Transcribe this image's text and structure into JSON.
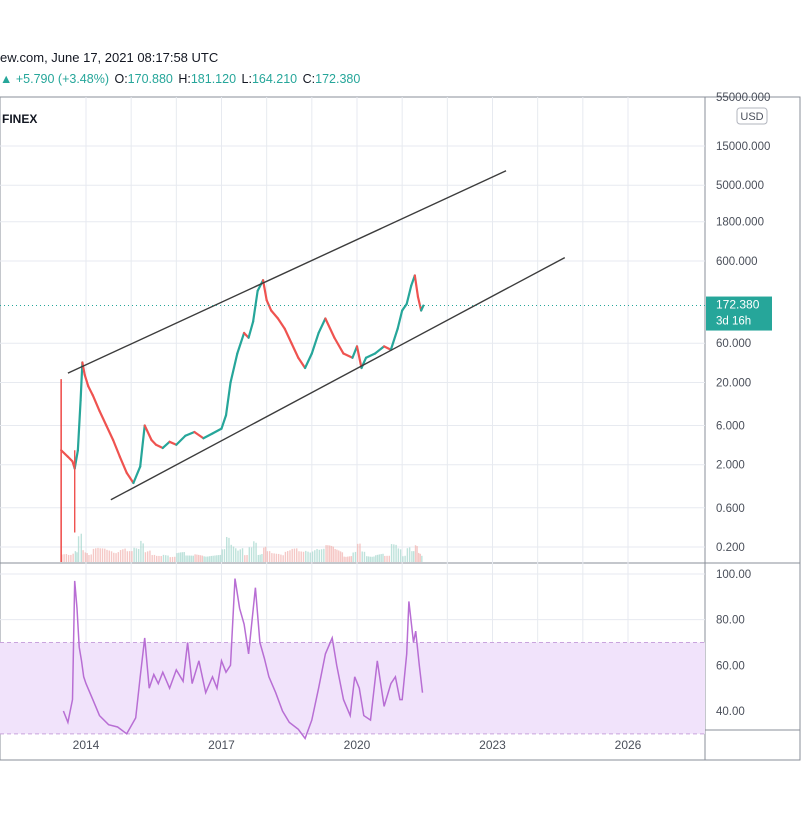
{
  "header": {
    "line1": "ew.com, June 17, 2021 08:17:58 UTC",
    "change_icon": "▲",
    "change": "+5.790 (+3.48%)",
    "ohlc": [
      {
        "label": "O:",
        "value": "170.880"
      },
      {
        "label": "H:",
        "value": "181.120"
      },
      {
        "label": "L:",
        "value": "164.210"
      },
      {
        "label": "C:",
        "value": "172.380"
      }
    ],
    "exchange": "FINEX"
  },
  "colors": {
    "up": "#26a69a",
    "down": "#ef5350",
    "rsi": "#b86ed4",
    "rsi_band": "#f1e3fb",
    "grid": "#e7eaf0",
    "channel": "#3c3c3c"
  },
  "chart_data": [
    {
      "type": "line",
      "title": "",
      "xlabel": "",
      "ylabel": "",
      "scale": "log",
      "currency_label": "USD",
      "x_ticks": [
        "2014",
        "2017",
        "2020",
        "2023",
        "2026"
      ],
      "y_ticks": [
        "55000.000",
        "15000.000",
        "5000.000",
        "1800.000",
        "600.000",
        "60.000",
        "20.000",
        "6.000",
        "2.000",
        "0.600",
        "0.200"
      ],
      "ylim": [
        0.17,
        55000
      ],
      "last_price": {
        "value": "172.380",
        "countdown": "3d 16h"
      },
      "series": [
        {
          "values_x": [
            2013.45,
            2013.6,
            2013.7,
            2013.75,
            2013.82,
            2013.88,
            2013.92,
            2013.97,
            2014.05,
            2014.15,
            2014.3,
            2014.45,
            2014.6,
            2014.75,
            2014.9,
            2015.05,
            2015.2,
            2015.3,
            2015.45,
            2015.55,
            2015.7,
            2015.85,
            2016.0,
            2016.2,
            2016.4,
            2016.6,
            2016.8,
            2017.0,
            2017.1,
            2017.2,
            2017.35,
            2017.5,
            2017.6,
            2017.7,
            2017.8,
            2017.92,
            2018.0,
            2018.1,
            2018.25,
            2018.4,
            2018.55,
            2018.7,
            2018.85,
            2019.0,
            2019.15,
            2019.3,
            2019.5,
            2019.7,
            2019.9,
            2020.0,
            2020.1,
            2020.2,
            2020.4,
            2020.6,
            2020.75,
            2020.9,
            2021.0,
            2021.1,
            2021.2,
            2021.28,
            2021.35,
            2021.42,
            2021.47
          ],
          "values_y": [
            3,
            2.5,
            2.2,
            1.8,
            3,
            12,
            35,
            25,
            18,
            14,
            9,
            6,
            4,
            2.5,
            1.6,
            1.2,
            1.9,
            6,
            4,
            3.5,
            3.2,
            3.8,
            3.5,
            4.5,
            5,
            4.2,
            4.8,
            5.5,
            8,
            20,
            45,
            80,
            70,
            110,
            260,
            350,
            200,
            150,
            120,
            90,
            60,
            40,
            30,
            45,
            80,
            120,
            70,
            45,
            40,
            55,
            30,
            40,
            45,
            55,
            50,
            90,
            150,
            180,
            300,
            400,
            220,
            150,
            172
          ]
        }
      ],
      "channel_lines": [
        {
          "x": [
            2013.6,
            2023.3
          ],
          "y": [
            26,
            7500
          ]
        },
        {
          "x": [
            2014.55,
            2024.6
          ],
          "y": [
            0.75,
            660
          ]
        }
      ]
    },
    {
      "type": "line",
      "title": "",
      "xlabel": "",
      "ylabel": "",
      "y_ticks": [
        "100.00",
        "80.00",
        "60.00",
        "40.00"
      ],
      "ylim": [
        22,
        103
      ],
      "band": [
        30,
        70
      ],
      "series": [
        {
          "values_x": [
            2013.5,
            2013.6,
            2013.7,
            2013.75,
            2013.8,
            2013.85,
            2013.9,
            2013.95,
            2014.0,
            2014.15,
            2014.3,
            2014.5,
            2014.7,
            2014.9,
            2015.1,
            2015.2,
            2015.3,
            2015.4,
            2015.5,
            2015.6,
            2015.7,
            2015.85,
            2016.0,
            2016.15,
            2016.25,
            2016.35,
            2016.5,
            2016.65,
            2016.8,
            2016.9,
            2017.0,
            2017.1,
            2017.2,
            2017.3,
            2017.4,
            2017.5,
            2017.6,
            2017.75,
            2017.85,
            2017.95,
            2018.05,
            2018.2,
            2018.35,
            2018.5,
            2018.7,
            2018.85,
            2019.0,
            2019.15,
            2019.3,
            2019.45,
            2019.55,
            2019.7,
            2019.85,
            2019.95,
            2020.05,
            2020.15,
            2020.3,
            2020.45,
            2020.6,
            2020.75,
            2020.85,
            2020.95,
            2021.0,
            2021.1,
            2021.15,
            2021.25,
            2021.3,
            2021.38,
            2021.45
          ],
          "values_y": [
            40,
            35,
            45,
            97,
            85,
            68,
            62,
            55,
            52,
            45,
            38,
            34,
            33,
            30,
            37,
            55,
            72,
            50,
            56,
            52,
            57,
            50,
            58,
            53,
            70,
            52,
            62,
            48,
            55,
            50,
            62,
            57,
            60,
            98,
            85,
            78,
            65,
            94,
            70,
            63,
            55,
            48,
            40,
            35,
            32,
            28,
            36,
            50,
            65,
            72,
            60,
            45,
            38,
            55,
            50,
            38,
            36,
            62,
            42,
            52,
            55,
            45,
            45,
            65,
            88,
            70,
            75,
            60,
            48
          ]
        }
      ]
    }
  ]
}
